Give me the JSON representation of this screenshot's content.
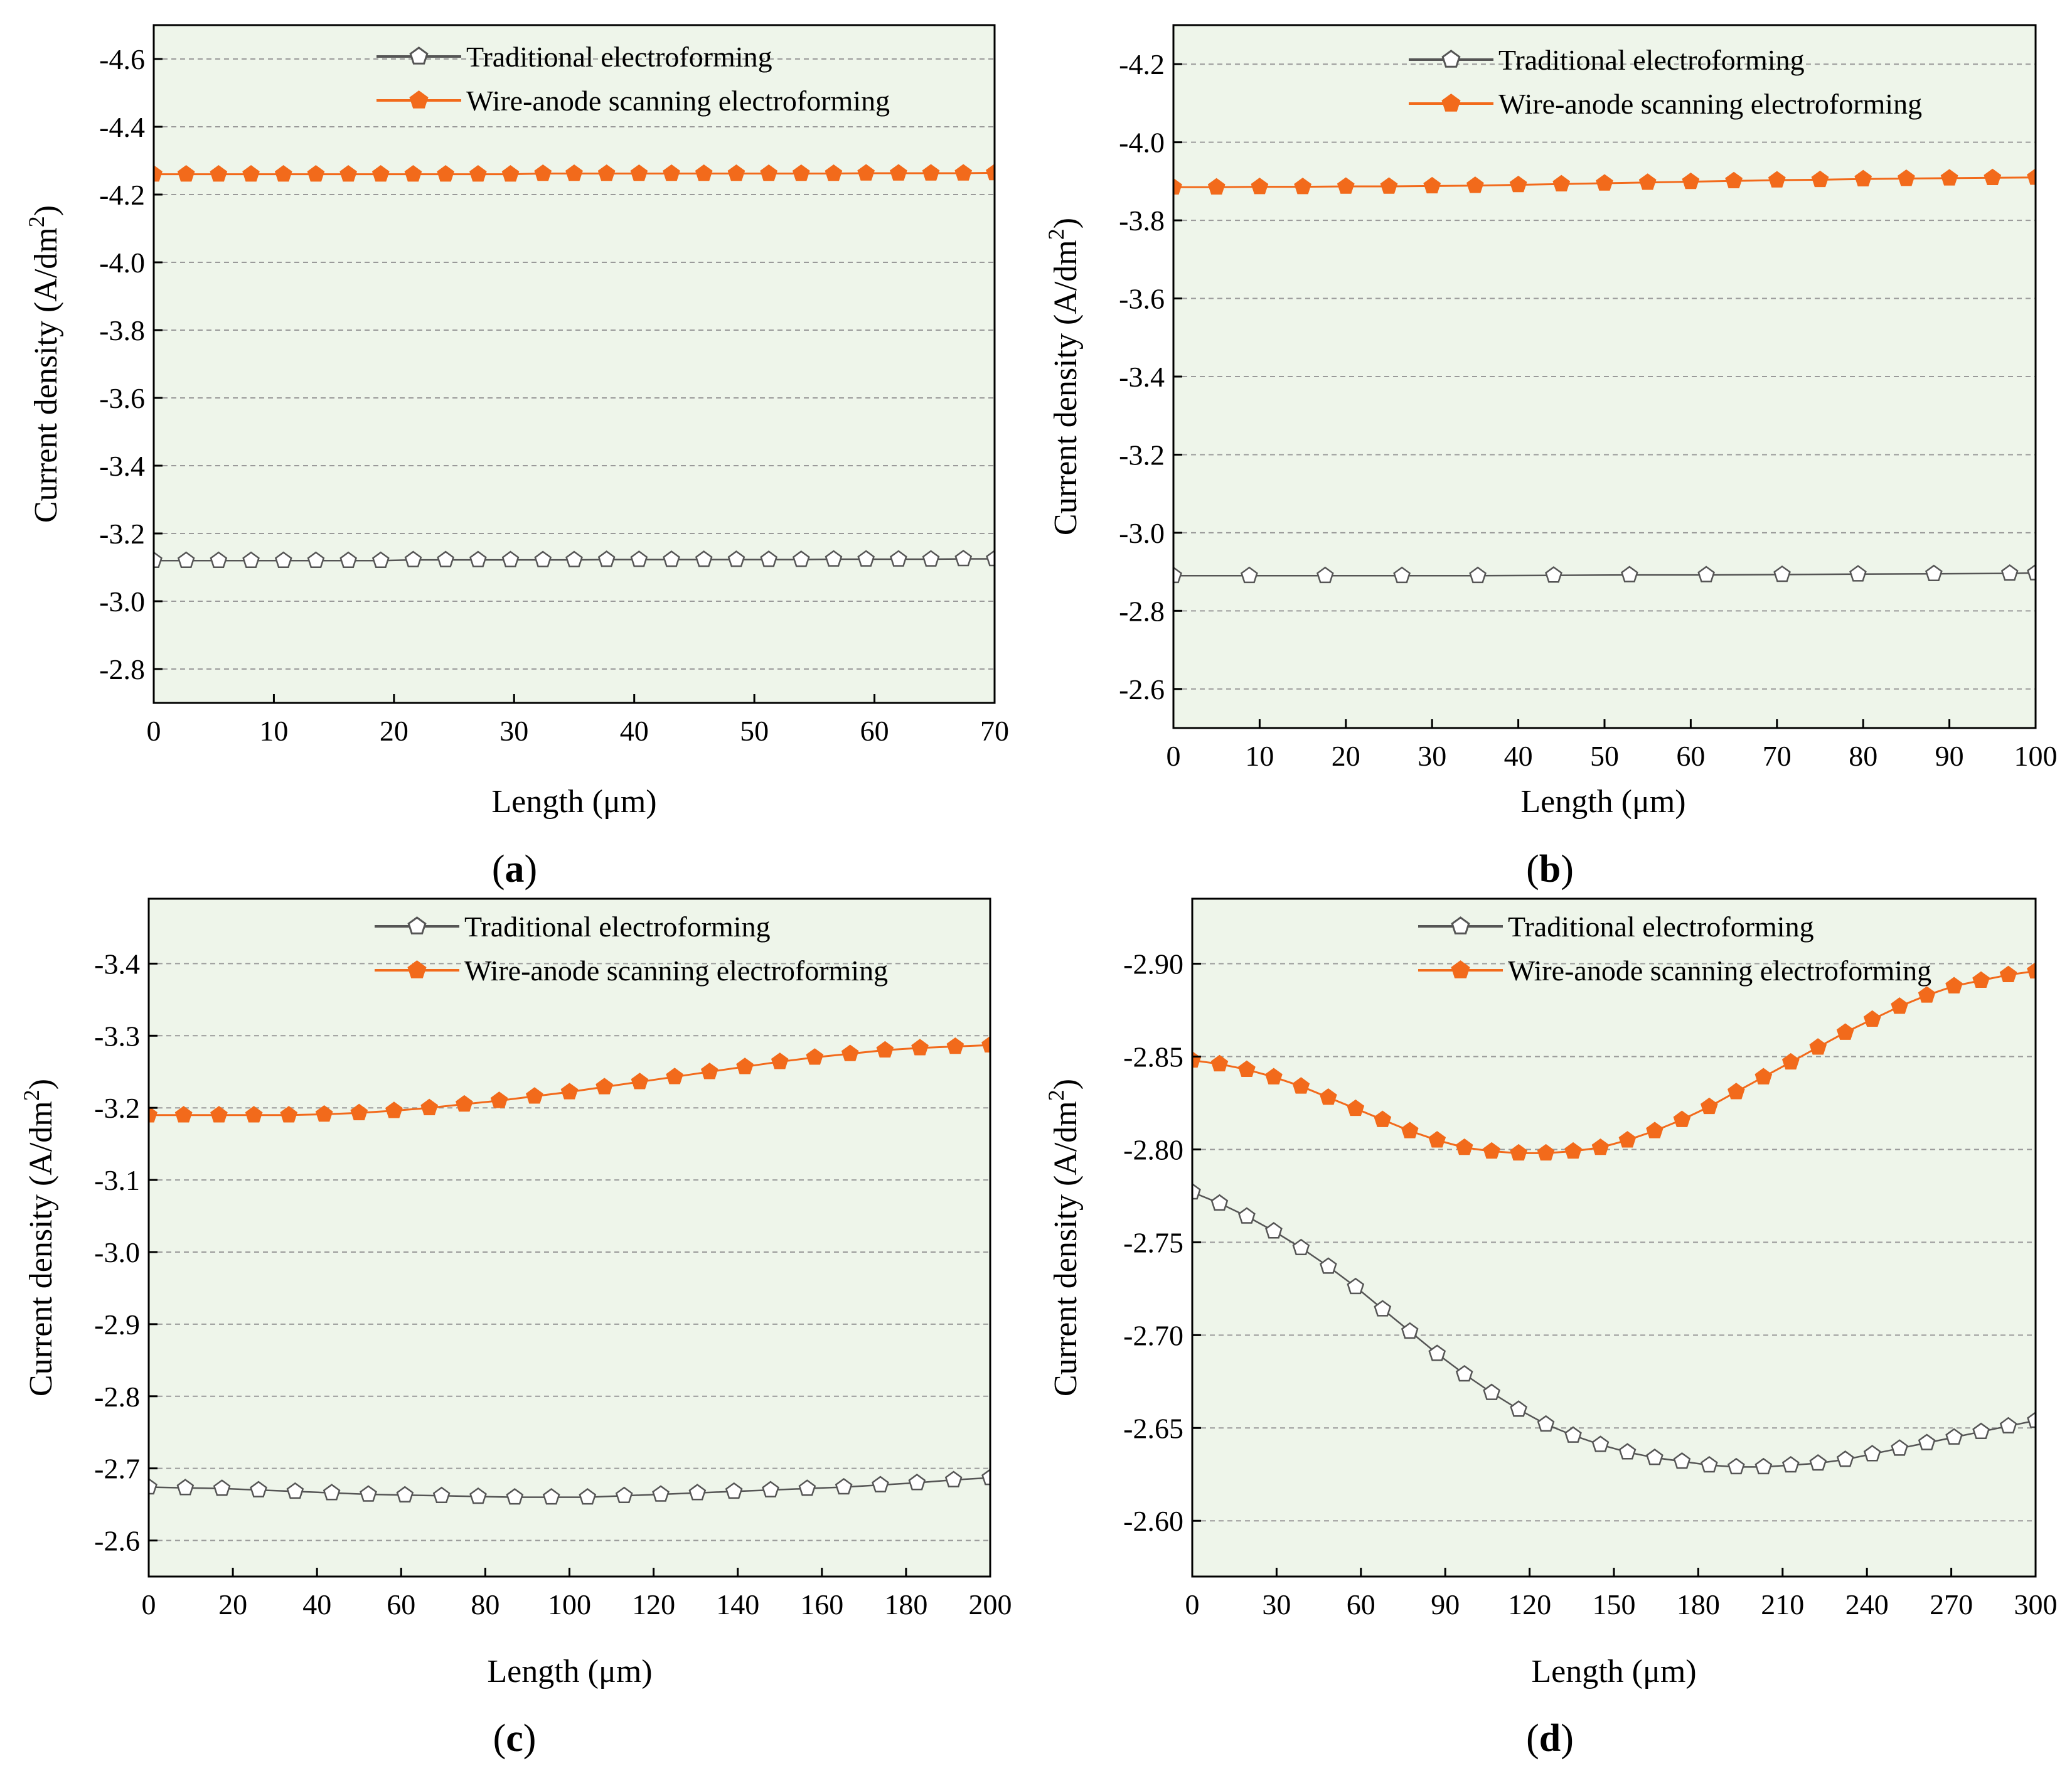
{
  "figure": {
    "panels": [
      {
        "id": "a",
        "caption_text": "a"
      },
      {
        "id": "b",
        "caption_text": "b"
      },
      {
        "id": "c",
        "caption_text": "c"
      },
      {
        "id": "d",
        "caption_text": "d"
      }
    ]
  },
  "colors": {
    "plot_background": "#eef5ea",
    "grid": "#9a9a9a",
    "traditional_line": "#555555",
    "traditional_marker_fill": "#ffffff",
    "wire_anode": "#f26a1b",
    "axis": "#000000"
  },
  "chart_data": [
    {
      "type": "line",
      "panel": "a",
      "xlabel": "Length (μm)",
      "ylabel": "Current density (A/dm²)",
      "xlim": [
        0,
        70
      ],
      "ylim": [
        -2.7,
        -4.7
      ],
      "xticks": [
        0,
        10,
        20,
        30,
        40,
        50,
        60,
        70
      ],
      "xtick_labels": [
        "0",
        "10",
        "20",
        "30",
        "40",
        "50",
        "60",
        "70"
      ],
      "yticks": [
        -2.8,
        -3.0,
        -3.2,
        -3.4,
        -3.6,
        -3.8,
        -4.0,
        -4.2,
        -4.4,
        -4.6
      ],
      "ytick_labels": [
        "-2.8",
        "-3.0",
        "-3.2",
        "-3.4",
        "-3.6",
        "-3.8",
        "-4.0",
        "-4.2",
        "-4.4",
        "-4.6"
      ],
      "grid": "horizontal dashed",
      "legend": "top",
      "series": [
        {
          "name": "Traditional electroforming",
          "marker": "hollow-pentagon",
          "x": [
            0,
            2.7,
            5.4,
            8.1,
            10.8,
            13.5,
            16.2,
            18.9,
            21.6,
            24.3,
            27,
            29.7,
            32.4,
            35,
            37.7,
            40.4,
            43.1,
            45.8,
            48.5,
            51.2,
            53.9,
            56.6,
            59.3,
            62,
            64.7,
            67.4,
            70
          ],
          "y": [
            -3.12,
            -3.12,
            -3.12,
            -3.12,
            -3.12,
            -3.12,
            -3.12,
            -3.12,
            -3.122,
            -3.122,
            -3.122,
            -3.122,
            -3.122,
            -3.122,
            -3.123,
            -3.123,
            -3.123,
            -3.123,
            -3.123,
            -3.123,
            -3.123,
            -3.124,
            -3.124,
            -3.124,
            -3.124,
            -3.125,
            -3.125
          ]
        },
        {
          "name": "Wire-anode scanning electroforming",
          "marker": "filled-pentagon",
          "x": [
            0,
            2.7,
            5.4,
            8.1,
            10.8,
            13.5,
            16.2,
            18.9,
            21.6,
            24.3,
            27,
            29.7,
            32.4,
            35,
            37.7,
            40.4,
            43.1,
            45.8,
            48.5,
            51.2,
            53.9,
            56.6,
            59.3,
            62,
            64.7,
            67.4,
            70
          ],
          "y": [
            -4.26,
            -4.26,
            -4.26,
            -4.26,
            -4.26,
            -4.26,
            -4.26,
            -4.26,
            -4.26,
            -4.26,
            -4.26,
            -4.26,
            -4.262,
            -4.262,
            -4.262,
            -4.262,
            -4.262,
            -4.262,
            -4.262,
            -4.262,
            -4.262,
            -4.262,
            -4.263,
            -4.263,
            -4.263,
            -4.263,
            -4.264
          ]
        }
      ]
    },
    {
      "type": "line",
      "panel": "b",
      "xlabel": "Length (μm)",
      "ylabel": "Current density (A/dm²)",
      "xlim": [
        0,
        100
      ],
      "ylim": [
        -2.5,
        -4.3
      ],
      "xticks": [
        0,
        10,
        20,
        30,
        40,
        50,
        60,
        70,
        80,
        90,
        100
      ],
      "xtick_labels": [
        "0",
        "10",
        "20",
        "30",
        "40",
        "50",
        "60",
        "70",
        "80",
        "90",
        "100"
      ],
      "yticks": [
        -2.6,
        -2.8,
        -3.0,
        -3.2,
        -3.4,
        -3.6,
        -3.8,
        -4.0,
        -4.2
      ],
      "ytick_labels": [
        "-2.6",
        "-2.8",
        "-3.0",
        "-3.2",
        "-3.4",
        "-3.6",
        "-3.8",
        "-4.0",
        "-4.2"
      ],
      "grid": "horizontal dashed",
      "legend": "top",
      "series": [
        {
          "name": "Traditional electroforming",
          "marker": "hollow-pentagon",
          "x": [
            0,
            8.8,
            17.6,
            26.5,
            35.3,
            44.1,
            52.9,
            61.8,
            70.6,
            79.4,
            88.2,
            97,
            100
          ],
          "y": [
            -2.89,
            -2.89,
            -2.89,
            -2.89,
            -2.89,
            -2.891,
            -2.892,
            -2.892,
            -2.893,
            -2.894,
            -2.895,
            -2.896,
            -2.897
          ]
        },
        {
          "name": "Wire-anode scanning electroforming",
          "marker": "filled-pentagon",
          "x": [
            0,
            5,
            10,
            15,
            20,
            25,
            30,
            35,
            40,
            45,
            50,
            55,
            60,
            65,
            70,
            75,
            80,
            85,
            90,
            95,
            100
          ],
          "y": [
            -3.885,
            -3.885,
            -3.886,
            -3.886,
            -3.887,
            -3.887,
            -3.888,
            -3.889,
            -3.891,
            -3.893,
            -3.895,
            -3.897,
            -3.899,
            -3.901,
            -3.903,
            -3.904,
            -3.906,
            -3.907,
            -3.908,
            -3.909,
            -3.91
          ]
        }
      ]
    },
    {
      "type": "line",
      "panel": "c",
      "xlabel": "Length (μm)",
      "ylabel": "Current density (A/dm²)",
      "xlim": [
        0,
        200
      ],
      "ylim": [
        -2.55,
        -3.49
      ],
      "xticks": [
        0,
        20,
        40,
        60,
        80,
        100,
        120,
        140,
        160,
        180,
        200
      ],
      "xtick_labels": [
        "0",
        "20",
        "40",
        "60",
        "80",
        "100",
        "120",
        "140",
        "160",
        "180",
        "200"
      ],
      "yticks": [
        -2.6,
        -2.7,
        -2.8,
        -2.9,
        -3.0,
        -3.1,
        -3.2,
        -3.3,
        -3.4
      ],
      "ytick_labels": [
        "-2.6",
        "-2.7",
        "-2.8",
        "-2.9",
        "-3.0",
        "-3.1",
        "-3.2",
        "-3.3",
        "-3.4"
      ],
      "grid": "horizontal dashed",
      "legend": "top",
      "series": [
        {
          "name": "Traditional electroforming",
          "marker": "hollow-pentagon",
          "x": [
            0,
            8.7,
            17.4,
            26.1,
            34.8,
            43.5,
            52.2,
            60.9,
            69.6,
            78.3,
            87,
            95.7,
            104.3,
            113,
            121.7,
            130.4,
            139.1,
            147.8,
            156.5,
            165.2,
            173.9,
            182.6,
            191.3,
            200
          ],
          "y": [
            -2.674,
            -2.673,
            -2.672,
            -2.67,
            -2.668,
            -2.666,
            -2.664,
            -2.663,
            -2.662,
            -2.661,
            -2.66,
            -2.66,
            -2.66,
            -2.662,
            -2.664,
            -2.666,
            -2.668,
            -2.67,
            -2.672,
            -2.674,
            -2.677,
            -2.68,
            -2.684,
            -2.687
          ]
        },
        {
          "name": "Wire-anode scanning electroforming",
          "marker": "filled-pentagon",
          "x": [
            0,
            8.3,
            16.7,
            25,
            33.3,
            41.7,
            50,
            58.3,
            66.7,
            75,
            83.3,
            91.7,
            100,
            108.3,
            116.7,
            125,
            133.3,
            141.7,
            150,
            158.3,
            166.7,
            175,
            183.3,
            191.7,
            200
          ],
          "y": [
            -3.19,
            -3.19,
            -3.19,
            -3.19,
            -3.19,
            -3.191,
            -3.193,
            -3.196,
            -3.2,
            -3.205,
            -3.21,
            -3.216,
            -3.222,
            -3.229,
            -3.236,
            -3.243,
            -3.25,
            -3.257,
            -3.264,
            -3.27,
            -3.275,
            -3.28,
            -3.283,
            -3.285,
            -3.287
          ]
        }
      ]
    },
    {
      "type": "line",
      "panel": "d",
      "xlabel": "Length (μm)",
      "ylabel": "Current density (A/dm²)",
      "xlim": [
        0,
        300
      ],
      "ylim": [
        -2.57,
        -2.935
      ],
      "xticks": [
        0,
        30,
        60,
        90,
        120,
        150,
        180,
        210,
        240,
        270,
        300
      ],
      "xtick_labels": [
        "0",
        "30",
        "60",
        "90",
        "120",
        "150",
        "180",
        "210",
        "240",
        "270",
        "300"
      ],
      "yticks": [
        -2.6,
        -2.65,
        -2.7,
        -2.75,
        -2.8,
        -2.85,
        -2.9
      ],
      "ytick_labels": [
        "-2.60",
        "-2.65",
        "-2.70",
        "-2.75",
        "-2.80",
        "-2.85",
        "-2.90"
      ],
      "grid": "horizontal dashed",
      "legend": "top",
      "series": [
        {
          "name": "Traditional electroforming",
          "marker": "hollow-pentagon",
          "x": [
            0,
            9.7,
            19.4,
            29,
            38.7,
            48.4,
            58.1,
            67.7,
            77.4,
            87.1,
            96.8,
            106.5,
            116.1,
            125.8,
            135.5,
            145.2,
            154.8,
            164.5,
            174.2,
            183.9,
            193.5,
            203.2,
            212.9,
            222.6,
            232.3,
            241.9,
            251.6,
            261.3,
            271,
            280.6,
            290.3,
            300
          ],
          "y": [
            -2.777,
            -2.771,
            -2.764,
            -2.756,
            -2.747,
            -2.737,
            -2.726,
            -2.714,
            -2.702,
            -2.69,
            -2.679,
            -2.669,
            -2.66,
            -2.652,
            -2.646,
            -2.641,
            -2.637,
            -2.634,
            -2.632,
            -2.63,
            -2.629,
            -2.629,
            -2.63,
            -2.631,
            -2.633,
            -2.636,
            -2.639,
            -2.642,
            -2.645,
            -2.648,
            -2.651,
            -2.654
          ]
        },
        {
          "name": "Wire-anode scanning electroforming",
          "marker": "filled-pentagon",
          "x": [
            0,
            9.7,
            19.4,
            29,
            38.7,
            48.4,
            58.1,
            67.7,
            77.4,
            87.1,
            96.8,
            106.5,
            116.1,
            125.8,
            135.5,
            145.2,
            154.8,
            164.5,
            174.2,
            183.9,
            193.5,
            203.2,
            212.9,
            222.6,
            232.3,
            241.9,
            251.6,
            261.3,
            271,
            280.6,
            290.3,
            300
          ],
          "y": [
            -2.848,
            -2.846,
            -2.843,
            -2.839,
            -2.834,
            -2.828,
            -2.822,
            -2.816,
            -2.81,
            -2.805,
            -2.801,
            -2.799,
            -2.798,
            -2.798,
            -2.799,
            -2.801,
            -2.805,
            -2.81,
            -2.816,
            -2.823,
            -2.831,
            -2.839,
            -2.847,
            -2.855,
            -2.863,
            -2.87,
            -2.877,
            -2.883,
            -2.888,
            -2.891,
            -2.894,
            -2.896
          ]
        }
      ]
    }
  ]
}
